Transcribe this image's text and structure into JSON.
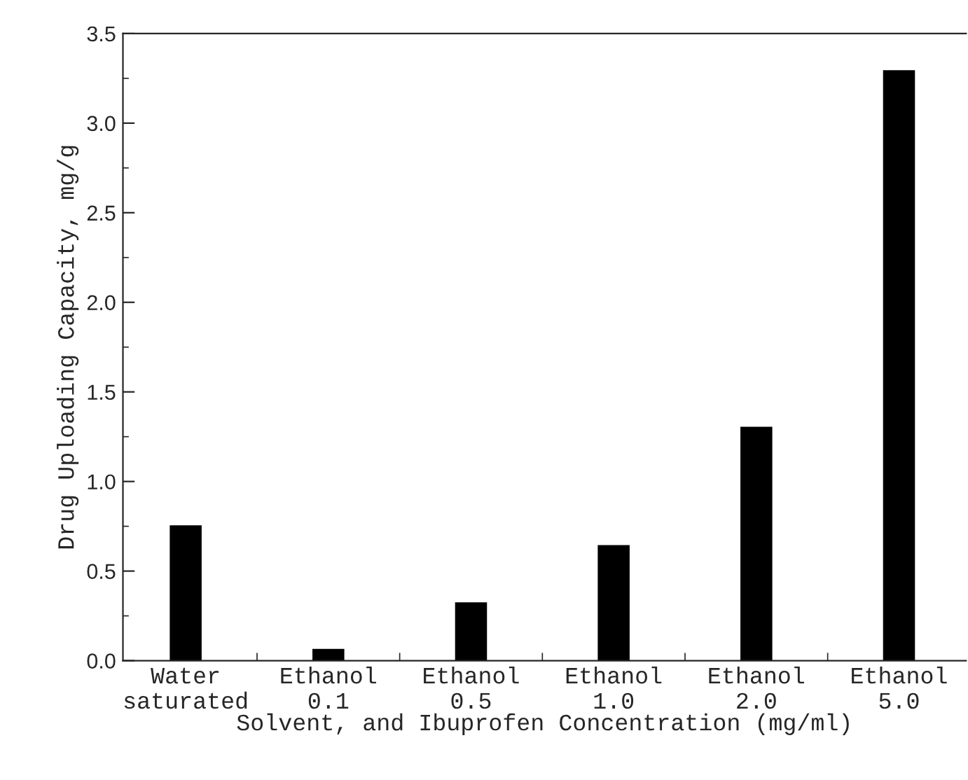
{
  "chart_data": {
    "type": "bar",
    "categories": [
      "Water\nsaturated",
      "Ethanol\n0.1",
      "Ethanol\n0.5",
      "Ethanol\n1.0",
      "Ethanol\n2.0",
      "Ethanol\n5.0"
    ],
    "values": [
      0.75,
      0.06,
      0.32,
      0.64,
      1.3,
      3.29
    ],
    "color": "#000000",
    "xlabel": "Solvent, and Ibuprofen Concentration (mg/ml)",
    "ylabel": "Drug Uploading Capacity, mg/g",
    "ylim": [
      0,
      3.5
    ],
    "yticks": [
      {
        "value": 0,
        "label": "0.0"
      },
      {
        "value": 0.5,
        "label": "0.5"
      },
      {
        "value": 1,
        "label": "1.0"
      },
      {
        "value": 1.5,
        "label": "1.5"
      },
      {
        "value": 2,
        "label": "2.0"
      },
      {
        "value": 2.5,
        "label": "2.5"
      },
      {
        "value": 3,
        "label": "3.0"
      },
      {
        "value": 3.5,
        "label": "3.5"
      }
    ],
    "grid": false,
    "legend": false
  }
}
